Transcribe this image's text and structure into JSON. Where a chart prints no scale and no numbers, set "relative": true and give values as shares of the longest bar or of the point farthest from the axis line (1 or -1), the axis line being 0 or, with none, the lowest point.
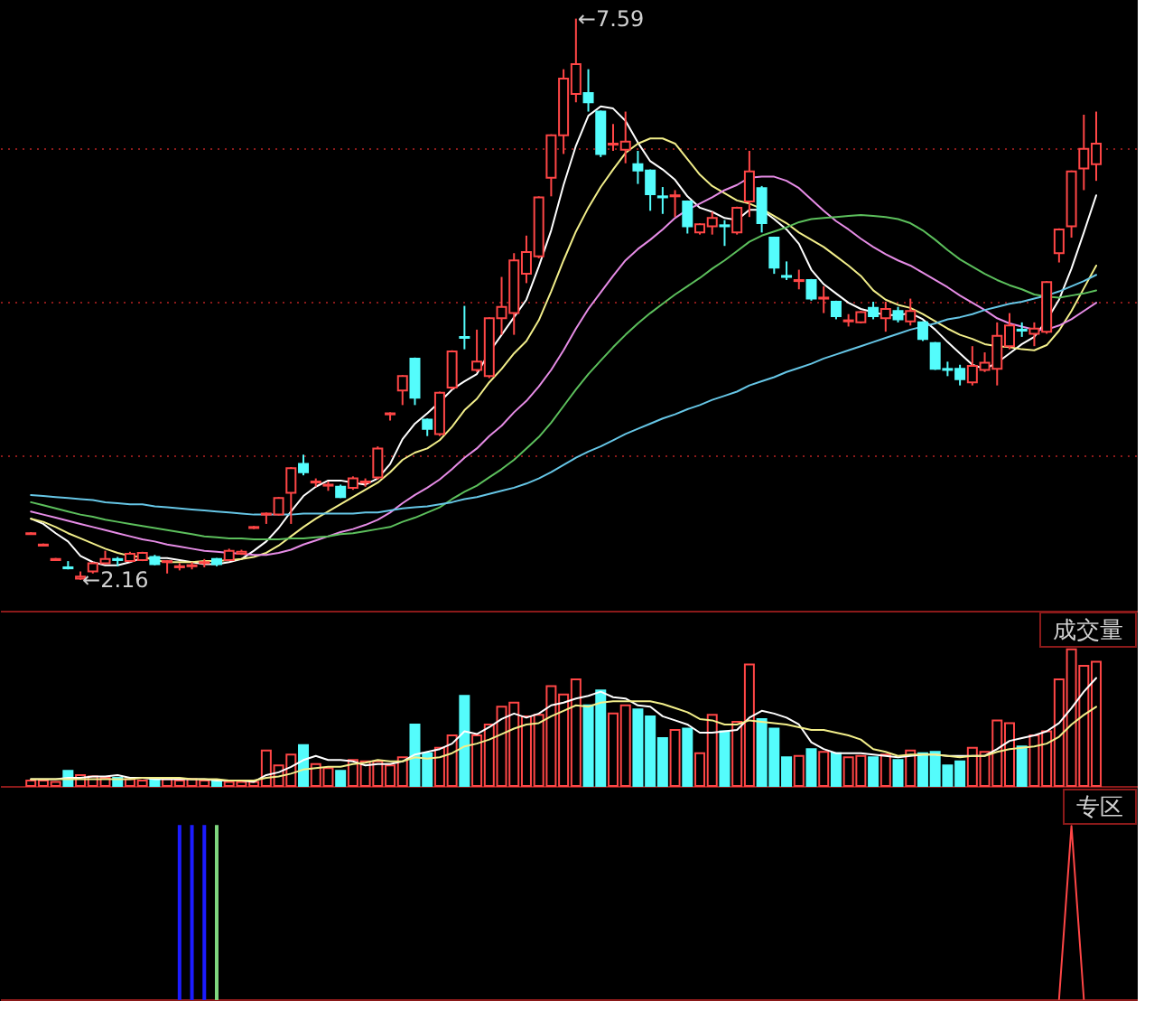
{
  "chart_data": [
    {
      "type": "candlestick",
      "categories": [
        null,
        null,
        null,
        null,
        null,
        null,
        null,
        null,
        null,
        null,
        null,
        null,
        null,
        null,
        null,
        null,
        null,
        null,
        null,
        null,
        null,
        null,
        null,
        null,
        null,
        null,
        null,
        null,
        null,
        null,
        null,
        null,
        null,
        null,
        null,
        null,
        null,
        null,
        null,
        null,
        null,
        null,
        null,
        null,
        null,
        null,
        null,
        null,
        null,
        null,
        null,
        null,
        null,
        null,
        null,
        null,
        null,
        null,
        null,
        null,
        null,
        null,
        null,
        null,
        null,
        null,
        null,
        null,
        null,
        null,
        null,
        null,
        null,
        null,
        null,
        null,
        null,
        null,
        null,
        null,
        null,
        null,
        null,
        null,
        null,
        null,
        null
      ],
      "ohlc": [
        [
          2.6,
          2.62,
          2.6,
          2.61
        ],
        [
          2.49,
          2.51,
          2.49,
          2.5
        ],
        [
          2.35,
          2.37,
          2.35,
          2.36
        ],
        [
          2.28,
          2.34,
          2.26,
          2.27
        ],
        [
          2.17,
          2.24,
          2.16,
          2.19
        ],
        [
          2.24,
          2.33,
          2.22,
          2.32
        ],
        [
          2.32,
          2.44,
          2.31,
          2.36
        ],
        [
          2.36,
          2.38,
          2.29,
          2.35
        ],
        [
          2.34,
          2.43,
          2.33,
          2.41
        ],
        [
          2.35,
          2.43,
          2.34,
          2.42
        ],
        [
          2.38,
          2.4,
          2.3,
          2.31
        ],
        [
          2.33,
          2.35,
          2.22,
          2.34
        ],
        [
          2.28,
          2.32,
          2.25,
          2.29
        ],
        [
          2.29,
          2.33,
          2.26,
          2.3
        ],
        [
          2.32,
          2.36,
          2.28,
          2.33
        ],
        [
          2.36,
          2.37,
          2.29,
          2.31
        ],
        [
          2.35,
          2.46,
          2.34,
          2.44
        ],
        [
          2.41,
          2.45,
          2.4,
          2.43
        ],
        [
          2.66,
          2.68,
          2.65,
          2.67
        ],
        [
          2.79,
          2.81,
          2.7,
          2.8
        ],
        [
          2.79,
          2.96,
          2.78,
          2.95
        ],
        [
          3.0,
          3.25,
          2.7,
          3.24
        ],
        [
          3.28,
          3.37,
          3.17,
          3.2
        ],
        [
          3.1,
          3.14,
          3.06,
          3.11
        ],
        [
          3.07,
          3.11,
          3.02,
          3.08
        ],
        [
          3.06,
          3.08,
          2.95,
          2.96
        ],
        [
          3.05,
          3.16,
          3.03,
          3.14
        ],
        [
          3.1,
          3.14,
          3.06,
          3.11
        ],
        [
          3.15,
          3.45,
          3.13,
          3.43
        ],
        [
          3.76,
          3.78,
          3.7,
          3.77
        ],
        [
          3.99,
          4.14,
          3.85,
          4.13
        ],
        [
          4.3,
          4.31,
          3.85,
          3.92
        ],
        [
          3.71,
          3.72,
          3.55,
          3.62
        ],
        [
          3.57,
          3.98,
          3.55,
          3.97
        ],
        [
          4.02,
          4.38,
          4.0,
          4.37
        ],
        [
          4.51,
          4.81,
          4.39,
          4.5
        ],
        [
          4.19,
          4.58,
          4.17,
          4.27
        ],
        [
          4.13,
          4.7,
          4.11,
          4.69
        ],
        [
          4.69,
          5.09,
          4.53,
          4.8
        ],
        [
          4.74,
          5.32,
          4.53,
          5.25
        ],
        [
          5.12,
          5.49,
          5.03,
          5.33
        ],
        [
          5.29,
          5.87,
          5.27,
          5.86
        ],
        [
          6.05,
          6.47,
          5.87,
          6.46
        ],
        [
          6.46,
          7.1,
          6.28,
          7.01
        ],
        [
          6.86,
          7.59,
          6.78,
          7.15
        ],
        [
          6.87,
          7.1,
          6.69,
          6.78
        ],
        [
          6.69,
          6.7,
          6.25,
          6.28
        ],
        [
          6.37,
          6.57,
          6.31,
          6.38
        ],
        [
          6.32,
          6.69,
          6.19,
          6.4
        ],
        [
          6.18,
          6.31,
          5.99,
          6.12
        ],
        [
          6.12,
          6.13,
          5.73,
          5.89
        ],
        [
          5.87,
          5.96,
          5.7,
          5.86
        ],
        [
          5.87,
          5.93,
          5.67,
          5.88
        ],
        [
          5.82,
          5.83,
          5.51,
          5.58
        ],
        [
          5.52,
          5.61,
          5.5,
          5.6
        ],
        [
          5.58,
          5.72,
          5.5,
          5.66
        ],
        [
          5.59,
          5.64,
          5.39,
          5.58
        ],
        [
          5.52,
          5.77,
          5.5,
          5.76
        ],
        [
          5.82,
          6.31,
          5.67,
          6.11
        ],
        [
          5.95,
          5.97,
          5.52,
          5.61
        ],
        [
          5.47,
          5.48,
          5.12,
          5.18
        ],
        [
          5.1,
          5.24,
          5.06,
          5.09
        ],
        [
          5.05,
          5.16,
          4.97,
          5.06
        ],
        [
          5.06,
          5.07,
          4.86,
          4.88
        ],
        [
          4.88,
          5.0,
          4.74,
          4.89
        ],
        [
          4.85,
          4.86,
          4.68,
          4.71
        ],
        [
          4.66,
          4.73,
          4.61,
          4.67
        ],
        [
          4.65,
          4.76,
          4.64,
          4.75
        ],
        [
          4.79,
          4.85,
          4.68,
          4.71
        ],
        [
          4.69,
          4.85,
          4.56,
          4.78
        ],
        [
          4.76,
          4.8,
          4.65,
          4.68
        ],
        [
          4.66,
          4.88,
          4.62,
          4.76
        ],
        [
          4.65,
          4.66,
          4.47,
          4.49
        ],
        [
          4.45,
          4.46,
          4.19,
          4.2
        ],
        [
          4.2,
          4.27,
          4.13,
          4.19
        ],
        [
          4.2,
          4.24,
          4.04,
          4.1
        ],
        [
          4.07,
          4.42,
          4.04,
          4.23
        ],
        [
          4.19,
          4.36,
          4.17,
          4.26
        ],
        [
          4.2,
          4.65,
          4.04,
          4.52
        ],
        [
          4.42,
          4.74,
          4.39,
          4.62
        ],
        [
          4.58,
          4.65,
          4.51,
          4.57
        ],
        [
          4.54,
          4.65,
          4.42,
          4.59
        ],
        [
          4.56,
          5.05,
          4.54,
          5.04
        ],
        [
          5.32,
          5.56,
          5.23,
          5.55
        ],
        [
          5.58,
          6.12,
          5.47,
          6.11
        ],
        [
          6.14,
          6.66,
          5.93,
          6.33
        ],
        [
          6.18,
          6.69,
          6.02,
          6.38
        ]
      ],
      "colors": [
        "#ff4646",
        "#ff4646",
        "#ff4646",
        "#54fcfc",
        "#ff4646",
        "#ff4646",
        "#ff4646",
        "#54fcfc",
        "#ff4646",
        "#ff4646",
        "#54fcfc",
        "#ff4646",
        "#ff4646",
        "#ff4646",
        "#ff4646",
        "#54fcfc",
        "#ff4646",
        "#ff4646",
        "#ff4646",
        "#ff4646",
        "#ff4646",
        "#ff4646",
        "#54fcfc",
        "#ff4646",
        "#ff4646",
        "#54fcfc",
        "#ff4646",
        "#ff4646",
        "#ff4646",
        "#ff4646",
        "#ff4646",
        "#54fcfc",
        "#54fcfc",
        "#ff4646",
        "#ff4646",
        "#54fcfc",
        "#ff4646",
        "#ff4646",
        "#ff4646",
        "#ff4646",
        "#ff4646",
        "#ff4646",
        "#ff4646",
        "#ff4646",
        "#ff4646",
        "#54fcfc",
        "#54fcfc",
        "#ff4646",
        "#ff4646",
        "#54fcfc",
        "#54fcfc",
        "#54fcfc",
        "#ff4646",
        "#54fcfc",
        "#ff4646",
        "#ff4646",
        "#54fcfc",
        "#ff4646",
        "#ff4646",
        "#54fcfc",
        "#54fcfc",
        "#54fcfc",
        "#ff4646",
        "#54fcfc",
        "#ff4646",
        "#54fcfc",
        "#ff4646",
        "#ff4646",
        "#54fcfc",
        "#ff4646",
        "#54fcfc",
        "#ff4646",
        "#54fcfc",
        "#54fcfc",
        "#54fcfc",
        "#54fcfc",
        "#ff4646",
        "#ff4646",
        "#ff4646",
        "#ff4646",
        "#54fcfc",
        "#ff4646",
        "#ff4646",
        "#ff4646",
        "#ff4646",
        "#ff4646",
        "#ff4646"
      ],
      "series": [
        {
          "type": "line",
          "color": "#ffffff",
          "values": [
            2.75,
            2.7,
            2.61,
            2.53,
            2.39,
            2.33,
            2.3,
            2.3,
            2.33,
            2.37,
            2.37,
            2.37,
            2.35,
            2.33,
            2.31,
            2.31,
            2.33,
            2.36,
            2.44,
            2.53,
            2.66,
            2.82,
            2.97,
            3.06,
            3.12,
            3.12,
            3.1,
            3.08,
            3.14,
            3.28,
            3.52,
            3.67,
            3.77,
            3.88,
            4.0,
            4.08,
            4.15,
            4.36,
            4.53,
            4.7,
            4.87,
            5.19,
            5.54,
            5.98,
            6.36,
            6.65,
            6.74,
            6.72,
            6.6,
            6.39,
            6.21,
            6.13,
            6.03,
            5.87,
            5.76,
            5.72,
            5.66,
            5.64,
            5.74,
            5.74,
            5.65,
            5.55,
            5.41,
            5.16,
            5.02,
            4.93,
            4.84,
            4.78,
            4.75,
            4.72,
            4.72,
            4.74,
            4.68,
            4.58,
            4.46,
            4.35,
            4.24,
            4.2,
            4.26,
            4.35,
            4.44,
            4.51,
            4.67,
            4.87,
            5.17,
            5.52,
            5.88
          ]
        },
        {
          "type": "line",
          "color": "#f2ee8a",
          "values": [
            2.75,
            2.72,
            2.67,
            2.61,
            2.56,
            2.51,
            2.46,
            2.42,
            2.39,
            2.38,
            2.35,
            2.33,
            2.33,
            2.33,
            2.34,
            2.34,
            2.35,
            2.36,
            2.38,
            2.42,
            2.49,
            2.58,
            2.67,
            2.75,
            2.82,
            2.89,
            2.96,
            3.03,
            3.1,
            3.2,
            3.32,
            3.39,
            3.43,
            3.51,
            3.64,
            3.8,
            3.91,
            4.07,
            4.2,
            4.35,
            4.47,
            4.67,
            4.95,
            5.25,
            5.53,
            5.76,
            5.96,
            6.13,
            6.29,
            6.38,
            6.43,
            6.43,
            6.38,
            6.23,
            6.08,
            5.97,
            5.9,
            5.83,
            5.8,
            5.75,
            5.68,
            5.61,
            5.52,
            5.45,
            5.38,
            5.29,
            5.2,
            5.1,
            4.96,
            4.87,
            4.82,
            4.79,
            4.73,
            4.66,
            4.59,
            4.53,
            4.49,
            4.44,
            4.42,
            4.41,
            4.39,
            4.38,
            4.43,
            4.57,
            4.76,
            4.98,
            5.2
          ]
        },
        {
          "type": "line",
          "color": "#e68ce6",
          "values": [
            2.82,
            2.79,
            2.76,
            2.73,
            2.7,
            2.67,
            2.64,
            2.61,
            2.58,
            2.55,
            2.53,
            2.5,
            2.48,
            2.46,
            2.44,
            2.43,
            2.42,
            2.41,
            2.4,
            2.4,
            2.42,
            2.45,
            2.5,
            2.54,
            2.58,
            2.62,
            2.65,
            2.69,
            2.74,
            2.81,
            2.9,
            2.98,
            3.05,
            3.13,
            3.23,
            3.34,
            3.43,
            3.55,
            3.65,
            3.78,
            3.89,
            4.03,
            4.19,
            4.38,
            4.59,
            4.78,
            4.94,
            5.1,
            5.25,
            5.36,
            5.45,
            5.55,
            5.66,
            5.74,
            5.8,
            5.86,
            5.93,
            5.98,
            6.05,
            6.06,
            6.06,
            6.02,
            5.95,
            5.84,
            5.73,
            5.63,
            5.55,
            5.46,
            5.38,
            5.31,
            5.25,
            5.2,
            5.13,
            5.06,
            4.99,
            4.91,
            4.84,
            4.77,
            4.69,
            4.64,
            4.61,
            4.58,
            4.58,
            4.62,
            4.68,
            4.76,
            4.84
          ]
        },
        {
          "type": "line",
          "color": "#5cbf5c",
          "values": [
            2.91,
            2.88,
            2.85,
            2.82,
            2.79,
            2.77,
            2.74,
            2.72,
            2.7,
            2.68,
            2.66,
            2.64,
            2.62,
            2.6,
            2.58,
            2.57,
            2.56,
            2.56,
            2.55,
            2.55,
            2.55,
            2.56,
            2.56,
            2.57,
            2.58,
            2.6,
            2.61,
            2.63,
            2.65,
            2.67,
            2.72,
            2.76,
            2.81,
            2.86,
            2.94,
            3.01,
            3.07,
            3.15,
            3.23,
            3.32,
            3.43,
            3.54,
            3.68,
            3.84,
            4.0,
            4.15,
            4.28,
            4.41,
            4.53,
            4.64,
            4.74,
            4.83,
            4.92,
            5.0,
            5.08,
            5.17,
            5.25,
            5.34,
            5.43,
            5.49,
            5.53,
            5.57,
            5.62,
            5.65,
            5.66,
            5.67,
            5.68,
            5.69,
            5.68,
            5.67,
            5.65,
            5.61,
            5.54,
            5.45,
            5.35,
            5.26,
            5.19,
            5.12,
            5.06,
            5.01,
            4.97,
            4.92,
            4.9,
            4.89,
            4.91,
            4.93,
            4.96
          ]
        },
        {
          "type": "line",
          "color": "#66c6e6",
          "values": [
            2.98,
            2.97,
            2.96,
            2.95,
            2.94,
            2.93,
            2.91,
            2.9,
            2.89,
            2.89,
            2.87,
            2.86,
            2.85,
            2.84,
            2.83,
            2.82,
            2.81,
            2.8,
            2.79,
            2.79,
            2.79,
            2.79,
            2.8,
            2.8,
            2.8,
            2.8,
            2.8,
            2.81,
            2.81,
            2.83,
            2.85,
            2.86,
            2.87,
            2.89,
            2.91,
            2.94,
            2.96,
            2.99,
            3.02,
            3.05,
            3.09,
            3.14,
            3.2,
            3.27,
            3.34,
            3.4,
            3.45,
            3.51,
            3.57,
            3.62,
            3.67,
            3.72,
            3.76,
            3.81,
            3.85,
            3.9,
            3.94,
            3.98,
            4.04,
            4.08,
            4.12,
            4.17,
            4.21,
            4.25,
            4.3,
            4.34,
            4.38,
            4.42,
            4.46,
            4.5,
            4.54,
            4.58,
            4.61,
            4.64,
            4.68,
            4.7,
            4.73,
            4.77,
            4.8,
            4.83,
            4.85,
            4.88,
            4.91,
            4.95,
            5.0,
            5.05,
            5.11
          ]
        }
      ],
      "ylim": [
        1.86,
        7.77
      ],
      "yticks": [
        {
          "value": 3.36,
          "label": null
        },
        {
          "value": 4.85,
          "label": null
        },
        {
          "value": 6.33,
          "label": null
        }
      ],
      "grid": "y",
      "annotations": [
        "←7.59",
        "←2.16"
      ]
    },
    {
      "type": "bar",
      "title": "成交量",
      "categories": [
        null,
        null,
        null,
        null,
        null,
        null,
        null,
        null,
        null,
        null,
        null,
        null,
        null,
        null,
        null,
        null,
        null,
        null,
        null,
        null,
        null,
        null,
        null,
        null,
        null,
        null,
        null,
        null,
        null,
        null,
        null,
        null,
        null,
        null,
        null,
        null,
        null,
        null,
        null,
        null,
        null,
        null,
        null,
        null,
        null,
        null,
        null,
        null,
        null,
        null,
        null,
        null,
        null,
        null,
        null,
        null,
        null,
        null,
        null,
        null,
        null,
        null,
        null,
        null,
        null,
        null,
        null,
        null,
        null,
        null,
        null,
        null,
        null,
        null,
        null,
        null,
        null,
        null,
        null,
        null,
        null,
        null,
        null,
        null,
        null,
        null,
        null
      ],
      "relative": true,
      "series": [
        {
          "colors": [
            "#ff4646",
            "#ff4646",
            "#ff4646",
            "#54fcfc",
            "#ff4646",
            "#ff4646",
            "#ff4646",
            "#54fcfc",
            "#ff4646",
            "#ff4646",
            "#54fcfc",
            "#ff4646",
            "#ff4646",
            "#ff4646",
            "#ff4646",
            "#54fcfc",
            "#ff4646",
            "#ff4646",
            "#ff4646",
            "#ff4646",
            "#ff4646",
            "#ff4646",
            "#54fcfc",
            "#ff4646",
            "#ff4646",
            "#54fcfc",
            "#ff4646",
            "#ff4646",
            "#ff4646",
            "#ff4646",
            "#ff4646",
            "#54fcfc",
            "#54fcfc",
            "#ff4646",
            "#ff4646",
            "#54fcfc",
            "#ff4646",
            "#ff4646",
            "#ff4646",
            "#ff4646",
            "#ff4646",
            "#ff4646",
            "#ff4646",
            "#ff4646",
            "#ff4646",
            "#54fcfc",
            "#54fcfc",
            "#ff4646",
            "#ff4646",
            "#54fcfc",
            "#54fcfc",
            "#54fcfc",
            "#ff4646",
            "#54fcfc",
            "#ff4646",
            "#ff4646",
            "#54fcfc",
            "#ff4646",
            "#ff4646",
            "#54fcfc",
            "#54fcfc",
            "#54fcfc",
            "#ff4646",
            "#54fcfc",
            "#ff4646",
            "#54fcfc",
            "#ff4646",
            "#ff4646",
            "#54fcfc",
            "#ff4646",
            "#54fcfc",
            "#ff4646",
            "#54fcfc",
            "#54fcfc",
            "#54fcfc",
            "#54fcfc",
            "#ff4646",
            "#ff4646",
            "#ff4646",
            "#ff4646",
            "#54fcfc",
            "#ff4646",
            "#ff4646",
            "#ff4646",
            "#ff4646",
            "#ff4646",
            "#ff4646"
          ],
          "values": [
            0.04,
            0.04,
            0.03,
            0.11,
            0.08,
            0.07,
            0.06,
            0.06,
            0.05,
            0.04,
            0.05,
            0.05,
            0.04,
            0.05,
            0.04,
            0.04,
            0.03,
            0.03,
            0.03,
            0.26,
            0.15,
            0.23,
            0.3,
            0.16,
            0.13,
            0.11,
            0.19,
            0.18,
            0.18,
            0.15,
            0.21,
            0.45,
            0.24,
            0.28,
            0.37,
            0.66,
            0.37,
            0.45,
            0.58,
            0.61,
            0.51,
            0.52,
            0.73,
            0.67,
            0.78,
            0.59,
            0.7,
            0.53,
            0.59,
            0.56,
            0.51,
            0.35,
            0.41,
            0.42,
            0.24,
            0.52,
            0.4,
            0.47,
            0.89,
            0.49,
            0.42,
            0.21,
            0.22,
            0.27,
            0.25,
            0.24,
            0.21,
            0.22,
            0.21,
            0.23,
            0.19,
            0.26,
            0.24,
            0.25,
            0.15,
            0.18,
            0.28,
            0.25,
            0.48,
            0.46,
            0.29,
            0.37,
            0.4,
            0.78,
            1.0,
            0.88,
            0.91
          ]
        },
        {
          "type": "line",
          "color": "#ffffff",
          "values": [
            0.05,
            0.05,
            0.05,
            0.06,
            0.06,
            0.07,
            0.07,
            0.08,
            0.06,
            0.06,
            0.05,
            0.05,
            0.05,
            0.05,
            0.05,
            0.04,
            0.04,
            0.04,
            0.03,
            0.08,
            0.1,
            0.14,
            0.19,
            0.22,
            0.19,
            0.19,
            0.18,
            0.15,
            0.16,
            0.16,
            0.18,
            0.23,
            0.25,
            0.27,
            0.31,
            0.4,
            0.38,
            0.43,
            0.49,
            0.53,
            0.5,
            0.53,
            0.59,
            0.61,
            0.64,
            0.66,
            0.69,
            0.65,
            0.64,
            0.59,
            0.58,
            0.51,
            0.48,
            0.45,
            0.39,
            0.39,
            0.4,
            0.41,
            0.5,
            0.55,
            0.53,
            0.5,
            0.45,
            0.32,
            0.27,
            0.24,
            0.24,
            0.24,
            0.23,
            0.22,
            0.21,
            0.22,
            0.23,
            0.23,
            0.22,
            0.22,
            0.22,
            0.22,
            0.27,
            0.33,
            0.35,
            0.37,
            0.4,
            0.46,
            0.57,
            0.69,
            0.79
          ]
        },
        {
          "type": "line",
          "color": "#f2ee8a",
          "values": [
            0.05,
            0.05,
            0.05,
            0.05,
            0.05,
            0.05,
            0.05,
            0.05,
            0.05,
            0.06,
            0.06,
            0.06,
            0.06,
            0.05,
            0.05,
            0.05,
            0.04,
            0.04,
            0.04,
            0.06,
            0.07,
            0.09,
            0.12,
            0.13,
            0.14,
            0.14,
            0.16,
            0.17,
            0.19,
            0.18,
            0.18,
            0.21,
            0.2,
            0.21,
            0.24,
            0.29,
            0.31,
            0.34,
            0.38,
            0.42,
            0.45,
            0.46,
            0.51,
            0.55,
            0.59,
            0.58,
            0.61,
            0.62,
            0.62,
            0.62,
            0.62,
            0.6,
            0.57,
            0.54,
            0.49,
            0.48,
            0.45,
            0.45,
            0.48,
            0.47,
            0.46,
            0.45,
            0.43,
            0.41,
            0.41,
            0.39,
            0.37,
            0.34,
            0.27,
            0.25,
            0.22,
            0.23,
            0.23,
            0.23,
            0.22,
            0.21,
            0.22,
            0.22,
            0.25,
            0.27,
            0.28,
            0.29,
            0.31,
            0.36,
            0.45,
            0.52,
            0.58
          ]
        }
      ]
    },
    {
      "type": "bar",
      "title": "专区",
      "categories": [
        null,
        null,
        null,
        null,
        null,
        null,
        null,
        null,
        null,
        null,
        null,
        null,
        null,
        null,
        null,
        null,
        null,
        null,
        null,
        null,
        null,
        null,
        null,
        null,
        null,
        null,
        null,
        null,
        null,
        null,
        null,
        null,
        null,
        null,
        null,
        null,
        null,
        null,
        null,
        null,
        null,
        null,
        null,
        null,
        null,
        null,
        null,
        null,
        null,
        null,
        null,
        null,
        null,
        null,
        null,
        null,
        null,
        null,
        null,
        null,
        null,
        null,
        null,
        null,
        null,
        null,
        null,
        null,
        null,
        null,
        null,
        null,
        null,
        null,
        null,
        null,
        null,
        null,
        null,
        null,
        null,
        null,
        null,
        null,
        null,
        null,
        null
      ],
      "relative": true,
      "series": [
        {
          "color": "#1c1cff",
          "values": [
            null,
            null,
            null,
            null,
            null,
            null,
            null,
            null,
            null,
            null,
            null,
            null,
            1,
            1,
            1,
            null,
            null,
            null,
            null,
            null,
            null,
            null,
            null,
            null,
            null,
            null,
            null,
            null,
            null,
            null,
            null,
            null,
            null,
            null,
            null,
            null,
            null,
            null,
            null,
            null,
            null,
            null,
            null,
            null,
            null,
            null,
            null,
            null,
            null,
            null,
            null,
            null,
            null,
            null,
            null,
            null,
            null,
            null,
            null,
            null,
            null,
            null,
            null,
            null,
            null,
            null,
            null,
            null,
            null,
            null,
            null,
            null,
            null,
            null,
            null,
            null,
            null,
            null,
            null,
            null,
            null,
            null,
            null,
            null,
            null,
            null,
            null
          ]
        },
        {
          "color": "#7fd67f",
          "values": [
            null,
            null,
            null,
            null,
            null,
            null,
            null,
            null,
            null,
            null,
            null,
            null,
            null,
            null,
            null,
            1,
            null,
            null,
            null,
            null,
            null,
            null,
            null,
            null,
            null,
            null,
            null,
            null,
            null,
            null,
            null,
            null,
            null,
            null,
            null,
            null,
            null,
            null,
            null,
            null,
            null,
            null,
            null,
            null,
            null,
            null,
            null,
            null,
            null,
            null,
            null,
            null,
            null,
            null,
            null,
            null,
            null,
            null,
            null,
            null,
            null,
            null,
            null,
            null,
            null,
            null,
            null,
            null,
            null,
            null,
            null,
            null,
            null,
            null,
            null,
            null,
            null,
            null,
            null,
            null,
            null,
            null,
            null,
            null,
            null,
            null,
            null
          ]
        },
        {
          "type": "line",
          "color": "#ff4646",
          "values": [
            null,
            null,
            null,
            null,
            null,
            null,
            null,
            null,
            null,
            null,
            null,
            null,
            null,
            null,
            null,
            null,
            null,
            null,
            null,
            null,
            null,
            null,
            null,
            null,
            null,
            null,
            null,
            null,
            null,
            null,
            null,
            null,
            null,
            null,
            null,
            null,
            null,
            null,
            null,
            null,
            null,
            null,
            null,
            null,
            null,
            null,
            null,
            null,
            null,
            null,
            null,
            null,
            null,
            null,
            null,
            null,
            null,
            null,
            null,
            null,
            null,
            null,
            null,
            null,
            null,
            null,
            null,
            null,
            null,
            null,
            null,
            null,
            null,
            null,
            null,
            null,
            null,
            null,
            null,
            null,
            null,
            null,
            null,
            0,
            1,
            0,
            null
          ]
        }
      ]
    }
  ]
}
